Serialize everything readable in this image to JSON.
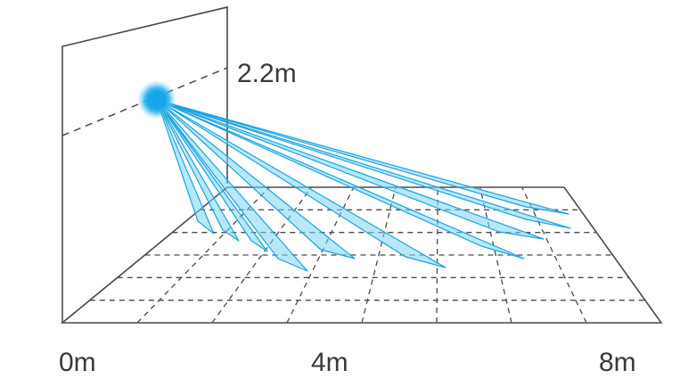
{
  "labels": {
    "mount_height": "2.2m",
    "distance_start": "0m",
    "distance_mid": "4m",
    "distance_end": "8m"
  },
  "colors": {
    "line": "#4a4a4a",
    "beam_fill": "#7dd3f5",
    "beam_stroke": "#1ba3e0",
    "sensor": "#1aa6e6"
  },
  "icons": {
    "sensor": "pir-sensor-icon"
  }
}
